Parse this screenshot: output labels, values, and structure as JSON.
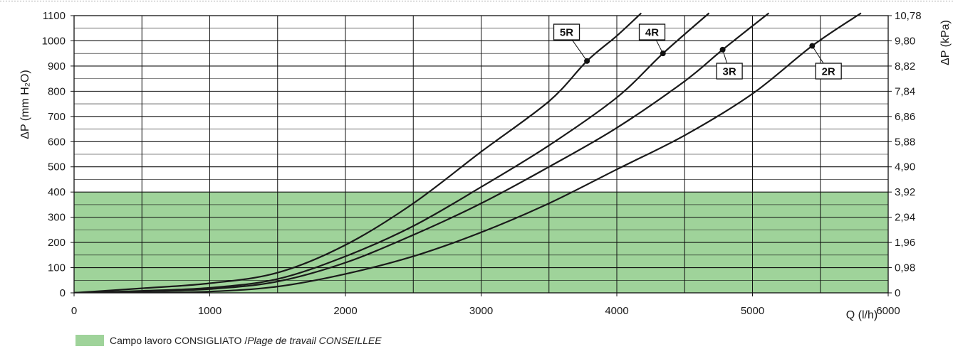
{
  "chart_data": {
    "type": "line",
    "xlabel": "Q (l/h)",
    "ylabel": "ΔP (mm H₂O)",
    "y2label": "ΔP (kPa)",
    "xlim": [
      0,
      6000
    ],
    "ylim": [
      0,
      1100
    ],
    "x_ticks": [
      0,
      1000,
      2000,
      3000,
      4000,
      5000,
      6000
    ],
    "y_ticks": [
      0,
      100,
      200,
      300,
      400,
      500,
      600,
      700,
      800,
      900,
      1000,
      1100
    ],
    "y2_ticks": [
      "0",
      "0,98",
      "1,96",
      "2,94",
      "3,92",
      "4,90",
      "5,88",
      "6,86",
      "7,84",
      "8,82",
      "9,80",
      "10,78"
    ],
    "grid": true,
    "recommended_zone": {
      "y_from": 0,
      "y_to": 400,
      "color": "#9fd39a"
    },
    "line_color": "#1a1a1a",
    "series": [
      {
        "name": "5R",
        "x": [
          0,
          500,
          1000,
          1500,
          2000,
          2500,
          3000,
          3500,
          3780,
          4000,
          4180
        ],
        "y": [
          0,
          18,
          38,
          80,
          190,
          355,
          560,
          760,
          920,
          1020,
          1110
        ],
        "marker": {
          "x": 3780,
          "y": 920
        },
        "label_at": [
          3630,
          1035
        ]
      },
      {
        "name": "4R",
        "x": [
          0,
          500,
          1000,
          1500,
          2000,
          2500,
          3000,
          3500,
          4000,
          4340,
          4680
        ],
        "y": [
          0,
          8,
          20,
          55,
          145,
          265,
          420,
          585,
          775,
          950,
          1110
        ],
        "marker": {
          "x": 4340,
          "y": 950
        },
        "label_at": [
          4260,
          1035
        ]
      },
      {
        "name": "3R",
        "x": [
          0,
          500,
          1000,
          1500,
          2000,
          2500,
          3000,
          3500,
          4000,
          4500,
          4780,
          5120
        ],
        "y": [
          0,
          5,
          15,
          45,
          120,
          230,
          355,
          500,
          655,
          840,
          965,
          1110
        ],
        "marker": {
          "x": 4780,
          "y": 965
        },
        "label_at": [
          4830,
          880
        ]
      },
      {
        "name": "2R",
        "x": [
          0,
          500,
          1000,
          1500,
          2000,
          2500,
          3000,
          3500,
          4000,
          4500,
          5000,
          5440,
          5800
        ],
        "y": [
          0,
          0,
          5,
          25,
          75,
          145,
          240,
          355,
          490,
          625,
          790,
          980,
          1110
        ],
        "marker": {
          "x": 5440,
          "y": 980
        },
        "label_at": [
          5560,
          880
        ]
      }
    ]
  },
  "legend": {
    "swatch_color": "#9fd39a",
    "text_regular": "Campo lavoro CONSIGLIATO / ",
    "text_italic": "Plage de travail CONSEILLEE"
  }
}
